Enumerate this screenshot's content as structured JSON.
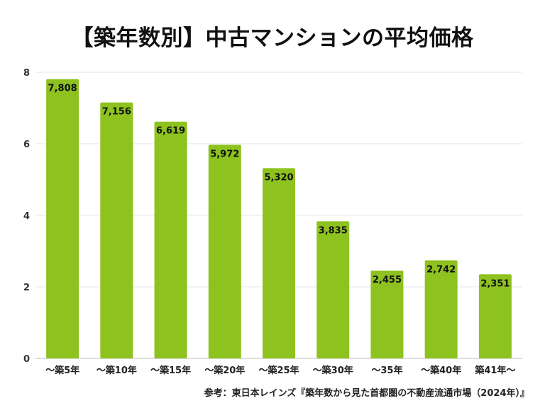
{
  "chart_data": {
    "type": "bar",
    "title": "【築年数別】中古マンションの平均価格",
    "categories": [
      "～築5年",
      "～築10年",
      "～築15年",
      "～築20年",
      "～築25年",
      "～築30年",
      "～35年",
      "～築40年",
      "築41年～"
    ],
    "values": [
      7.808,
      7.156,
      6.619,
      5.972,
      5.32,
      3.835,
      2.455,
      2.742,
      2.351
    ],
    "data_labels": [
      "7,808",
      "7,156",
      "6,619",
      "5,972",
      "5,320",
      "3,835",
      "2,455",
      "2,742",
      "2,351"
    ],
    "yticks": [
      "0",
      "2",
      "4",
      "6",
      "8"
    ],
    "ylim": [
      0,
      8
    ],
    "xlabel": "",
    "ylabel": "",
    "grid": true,
    "bar_color": "#8dc21f",
    "source": "参考：東日本レインズ『築年数から見た首都圏の不動産流通市場（2024年）』"
  }
}
